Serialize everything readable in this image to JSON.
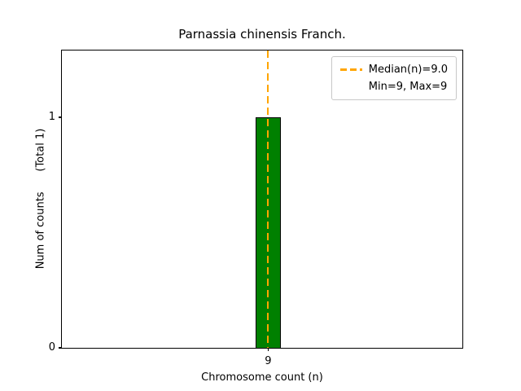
{
  "figure": {
    "background": "#ffffff"
  },
  "chart_data": {
    "type": "bar",
    "title": "Parnassia chinensis Franch.",
    "xlabel": "Chromosome count (n)",
    "ylabel": "Num of counts      (Total 1)",
    "categories": [
      "9"
    ],
    "values": [
      1
    ],
    "yticks": [
      0,
      1
    ],
    "ytick_labels": [
      "0",
      "1"
    ],
    "ylim": [
      0,
      1.29
    ],
    "grid": false,
    "bar_color": "#008000",
    "bar_edge_color": "#000000",
    "median": {
      "value": 9.0,
      "color": "#ffa500",
      "linestyle": "dashed"
    },
    "legend": {
      "position": "upper right",
      "entries": [
        {
          "label": "Median(n)=9.0",
          "marker": "dashed-line",
          "color": "#ffa500"
        },
        {
          "label": "Min=9, Max=9",
          "marker": "none"
        }
      ]
    }
  }
}
